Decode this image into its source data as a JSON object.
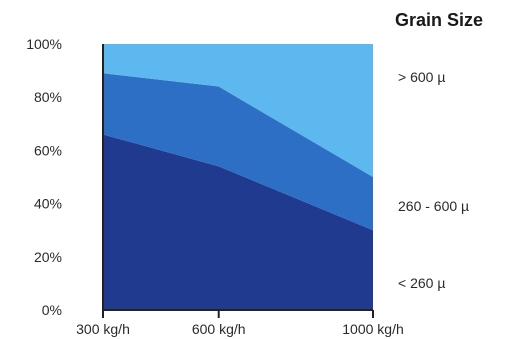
{
  "chart_data": {
    "type": "area",
    "stacked": true,
    "x": [
      300,
      600,
      1000
    ],
    "categories": [
      "300 kg/h",
      "600 kg/h",
      "1000 kg/h"
    ],
    "ylim": [
      0,
      100
    ],
    "y_ticks": [
      "0%",
      "20%",
      "40%",
      "60%",
      "80%",
      "100%"
    ],
    "y_tick_values": [
      0,
      20,
      40,
      60,
      80,
      100
    ],
    "legend_title": "Grain Size",
    "legend_placement": "right",
    "grid": false,
    "series": [
      {
        "name": "< 260 µ",
        "values": [
          66,
          54,
          30
        ],
        "color": "#1f3a8f"
      },
      {
        "name": "260 - 600 µ",
        "values": [
          23,
          30,
          20
        ],
        "color": "#2c6fc4"
      },
      {
        "name": "> 600 µ",
        "values": [
          11,
          16,
          50
        ],
        "color": "#5cb8ee"
      }
    ]
  }
}
